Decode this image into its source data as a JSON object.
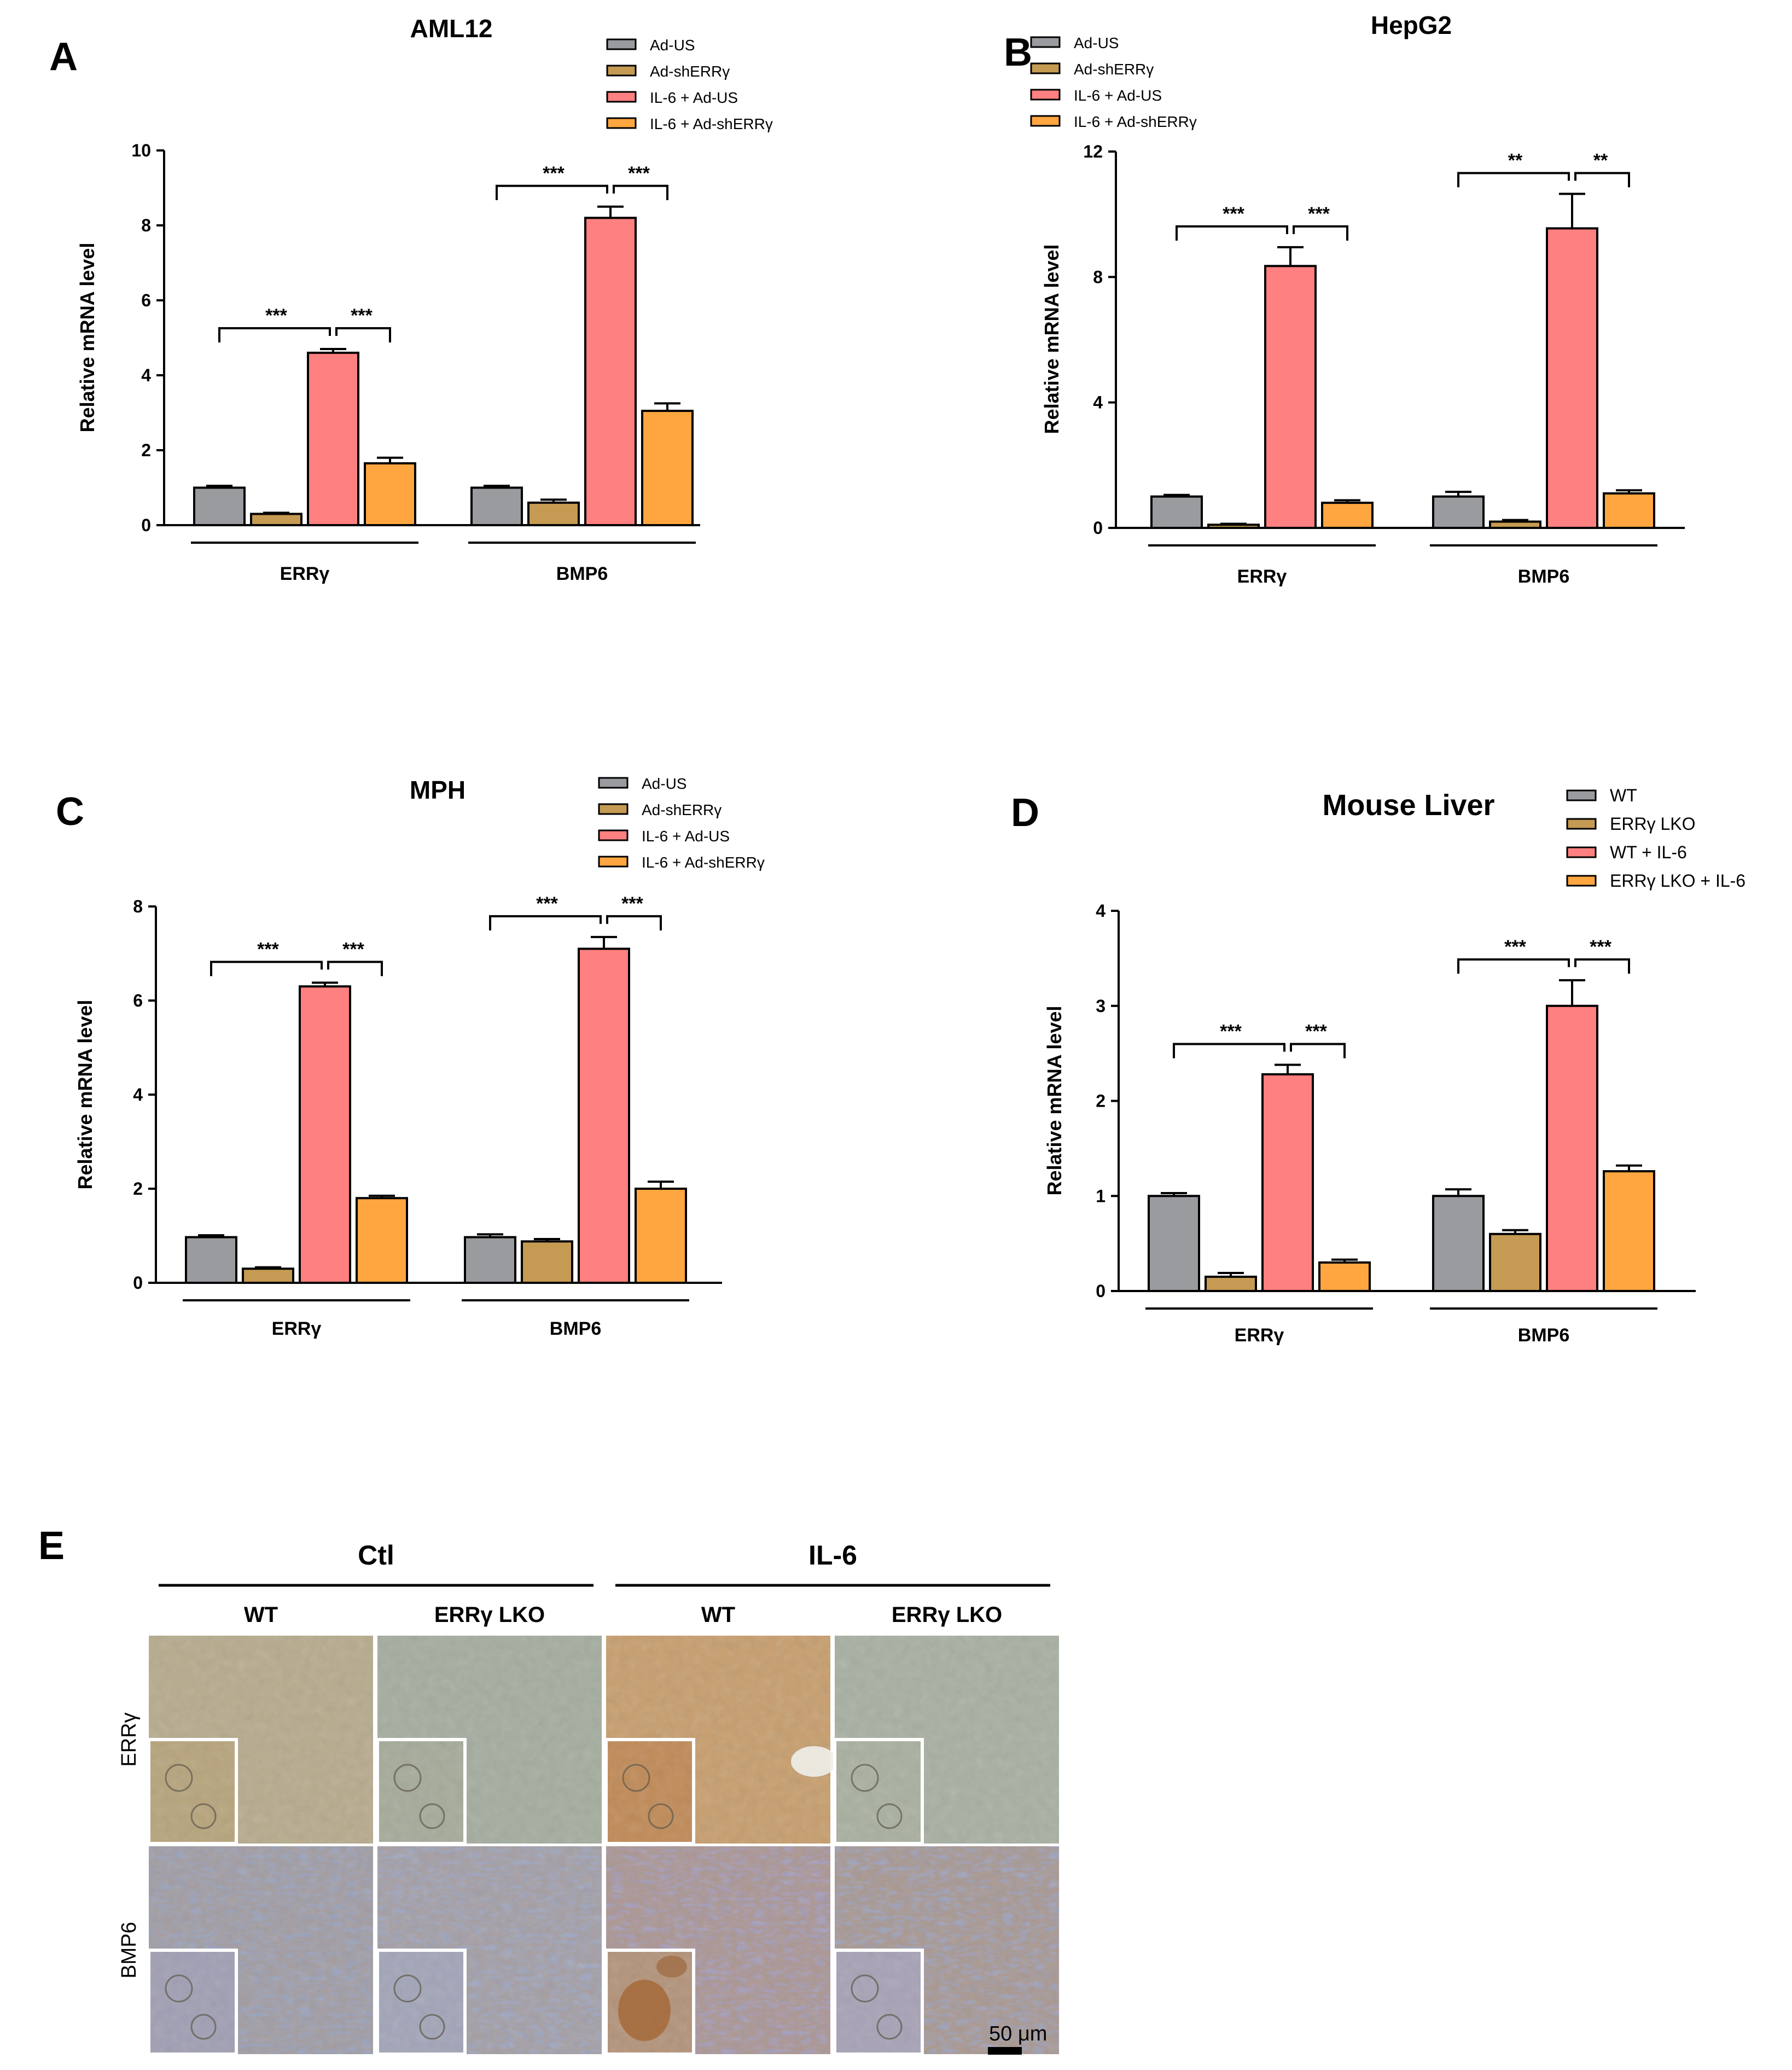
{
  "colors": {
    "grey": "#9a9b9f",
    "tan": "#c59a52",
    "pink": "#ff8080",
    "orange": "#ffa640"
  },
  "chart_data": [
    {
      "type": "bar",
      "panel_letter": "A",
      "title": "AML12",
      "ylabel": "Relative mRNA level",
      "xlabel": "",
      "ylim": [
        0,
        10
      ],
      "yticks": [
        "0",
        "2",
        "4",
        "6",
        "8",
        "10"
      ],
      "ytick_values": [
        0,
        2,
        4,
        6,
        8,
        10
      ],
      "categories": [
        "ERRγ",
        "BMP6"
      ],
      "legend": [
        "Ad-US",
        "Ad-shERRγ",
        "IL-6 + Ad-US",
        "IL-6 + Ad-shERRγ"
      ],
      "series": [
        {
          "name": "Ad-US",
          "values": [
            1.0,
            1.0
          ],
          "errors": [
            0.05,
            0.05
          ]
        },
        {
          "name": "Ad-shERRγ",
          "values": [
            0.3,
            0.6
          ],
          "errors": [
            0.03,
            0.08
          ]
        },
        {
          "name": "IL-6 + Ad-US",
          "values": [
            4.6,
            8.2
          ],
          "errors": [
            0.1,
            0.3
          ]
        },
        {
          "name": "IL-6 + Ad-shERRγ",
          "values": [
            1.65,
            3.05
          ],
          "errors": [
            0.15,
            0.2
          ]
        }
      ],
      "significance": [
        [
          "***",
          "***"
        ],
        [
          "***",
          "***"
        ]
      ]
    },
    {
      "type": "bar",
      "panel_letter": "B",
      "title": "HepG2",
      "ylabel": "Relative mRNA level",
      "xlabel": "",
      "ylim": [
        0,
        12
      ],
      "yticks": [
        "0",
        "4",
        "8",
        "12"
      ],
      "ytick_values": [
        0,
        4,
        8,
        12
      ],
      "categories": [
        "ERRγ",
        "BMP6"
      ],
      "legend": [
        "Ad-US",
        "Ad-shERRγ",
        "IL-6 + Ad-US",
        "IL-6 + Ad-shERRγ"
      ],
      "series": [
        {
          "name": "Ad-US",
          "values": [
            1.0,
            1.0
          ],
          "errors": [
            0.05,
            0.15
          ]
        },
        {
          "name": "Ad-shERRγ",
          "values": [
            0.1,
            0.2
          ],
          "errors": [
            0.03,
            0.05
          ]
        },
        {
          "name": "IL-6 + Ad-US",
          "values": [
            8.35,
            9.55
          ],
          "errors": [
            0.6,
            1.1
          ]
        },
        {
          "name": "IL-6 + Ad-shERRγ",
          "values": [
            0.8,
            1.1
          ],
          "errors": [
            0.08,
            0.1
          ]
        }
      ],
      "significance": [
        [
          "***",
          "***"
        ],
        [
          "**",
          "**"
        ]
      ]
    },
    {
      "type": "bar",
      "panel_letter": "C",
      "title": "MPH",
      "ylabel": "Relative mRNA level",
      "xlabel": "",
      "ylim": [
        0,
        8
      ],
      "yticks": [
        "0",
        "2",
        "4",
        "6",
        "8"
      ],
      "ytick_values": [
        0,
        2,
        4,
        6,
        8
      ],
      "categories": [
        "ERRγ",
        "BMP6"
      ],
      "legend": [
        "Ad-US",
        "Ad-shERRγ",
        "IL-6 + Ad-US",
        "IL-6 + Ad-shERRγ"
      ],
      "series": [
        {
          "name": "Ad-US",
          "values": [
            0.97,
            0.97
          ],
          "errors": [
            0.04,
            0.06
          ]
        },
        {
          "name": "Ad-shERRγ",
          "values": [
            0.3,
            0.88
          ],
          "errors": [
            0.03,
            0.05
          ]
        },
        {
          "name": "IL-6 + Ad-US",
          "values": [
            6.3,
            7.1
          ],
          "errors": [
            0.08,
            0.25
          ]
        },
        {
          "name": "IL-6 + Ad-shERRγ",
          "values": [
            1.8,
            2.0
          ],
          "errors": [
            0.05,
            0.15
          ]
        }
      ],
      "significance": [
        [
          "***",
          "***"
        ],
        [
          "***",
          "***"
        ]
      ]
    },
    {
      "type": "bar",
      "panel_letter": "D",
      "title": "Mouse Liver",
      "ylabel": "Relative mRNA level",
      "xlabel": "",
      "ylim": [
        0,
        4
      ],
      "yticks": [
        "0",
        "1",
        "2",
        "3",
        "4"
      ],
      "ytick_values": [
        0,
        1,
        2,
        3,
        4
      ],
      "categories": [
        "ERRγ",
        "BMP6"
      ],
      "legend": [
        "WT",
        "ERRγ LKO",
        "WT + IL-6",
        "ERRγ LKO + IL-6"
      ],
      "series": [
        {
          "name": "WT",
          "values": [
            1.0,
            1.0
          ],
          "errors": [
            0.03,
            0.07
          ]
        },
        {
          "name": "ERRγ LKO",
          "values": [
            0.15,
            0.6
          ],
          "errors": [
            0.04,
            0.04
          ]
        },
        {
          "name": "WT + IL-6",
          "values": [
            2.28,
            3.0
          ],
          "errors": [
            0.1,
            0.27
          ]
        },
        {
          "name": "ERRγ LKO + IL-6",
          "values": [
            0.3,
            1.26
          ],
          "errors": [
            0.03,
            0.06
          ]
        }
      ],
      "significance": [
        [
          "***",
          "***"
        ],
        [
          "***",
          "***"
        ]
      ]
    }
  ],
  "panel_e": {
    "letter": "E",
    "groups": [
      "Ctl",
      "IL-6"
    ],
    "columns": [
      "WT",
      "ERRγ LKO",
      "WT",
      "ERRγ LKO"
    ],
    "rows": [
      "ERRγ",
      "BMP6"
    ],
    "scale_bar_label": "50 μm"
  }
}
